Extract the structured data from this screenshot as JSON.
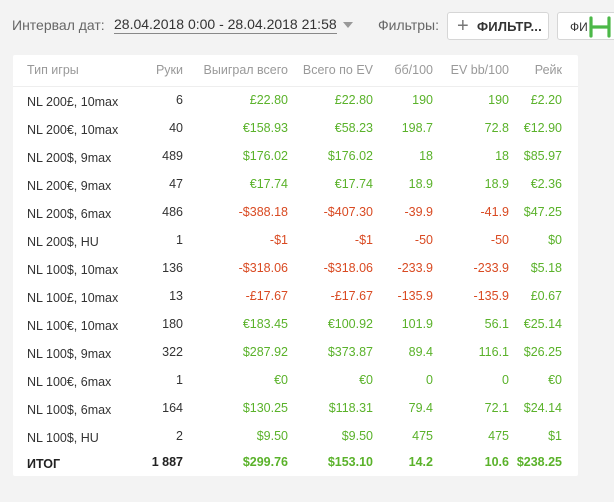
{
  "toolbar": {
    "date_label": "Интервал дат:",
    "date_range": "28.04.2018 0:00 - 28.04.2018 21:58",
    "filters_label": "Фильтры:",
    "filter_button": "ФИЛЬТР...",
    "second_button": "ФИ"
  },
  "table": {
    "headers": [
      "Тип игры",
      "Руки",
      "Выиграл всего",
      "Всего по EV",
      "бб/100",
      "EV bb/100",
      "Рейк"
    ],
    "rows": [
      {
        "game": "NL 200£, 10max",
        "hands": "6",
        "won": "£22.80",
        "ev": "£22.80",
        "bb100": "190",
        "evbb100": "190",
        "rake": "£2.20",
        "won_sign": "pos",
        "ev_sign": "pos",
        "bb_sign": "pos",
        "evbb_sign": "pos"
      },
      {
        "game": "NL 200€, 10max",
        "hands": "40",
        "won": "€158.93",
        "ev": "€58.23",
        "bb100": "198.7",
        "evbb100": "72.8",
        "rake": "€12.90",
        "won_sign": "pos",
        "ev_sign": "pos",
        "bb_sign": "pos",
        "evbb_sign": "pos"
      },
      {
        "game": "NL 200$, 9max",
        "hands": "489",
        "won": "$176.02",
        "ev": "$176.02",
        "bb100": "18",
        "evbb100": "18",
        "rake": "$85.97",
        "won_sign": "pos",
        "ev_sign": "pos",
        "bb_sign": "pos",
        "evbb_sign": "pos"
      },
      {
        "game": "NL 200€, 9max",
        "hands": "47",
        "won": "€17.74",
        "ev": "€17.74",
        "bb100": "18.9",
        "evbb100": "18.9",
        "rake": "€2.36",
        "won_sign": "pos",
        "ev_sign": "pos",
        "bb_sign": "pos",
        "evbb_sign": "pos"
      },
      {
        "game": "NL 200$, 6max",
        "hands": "486",
        "won": "-$388.18",
        "ev": "-$407.30",
        "bb100": "-39.9",
        "evbb100": "-41.9",
        "rake": "$47.25",
        "won_sign": "neg",
        "ev_sign": "neg",
        "bb_sign": "neg",
        "evbb_sign": "neg"
      },
      {
        "game": "NL 200$, HU",
        "hands": "1",
        "won": "-$1",
        "ev": "-$1",
        "bb100": "-50",
        "evbb100": "-50",
        "rake": "$0",
        "won_sign": "neg",
        "ev_sign": "neg",
        "bb_sign": "neg",
        "evbb_sign": "neg"
      },
      {
        "game": "NL 100$, 10max",
        "hands": "136",
        "won": "-$318.06",
        "ev": "-$318.06",
        "bb100": "-233.9",
        "evbb100": "-233.9",
        "rake": "$5.18",
        "won_sign": "neg",
        "ev_sign": "neg",
        "bb_sign": "neg",
        "evbb_sign": "neg"
      },
      {
        "game": "NL 100£, 10max",
        "hands": "13",
        "won": "-£17.67",
        "ev": "-£17.67",
        "bb100": "-135.9",
        "evbb100": "-135.9",
        "rake": "£0.67",
        "won_sign": "neg",
        "ev_sign": "neg",
        "bb_sign": "neg",
        "evbb_sign": "neg"
      },
      {
        "game": "NL 100€, 10max",
        "hands": "180",
        "won": "€183.45",
        "ev": "€100.92",
        "bb100": "101.9",
        "evbb100": "56.1",
        "rake": "€25.14",
        "won_sign": "pos",
        "ev_sign": "pos",
        "bb_sign": "pos",
        "evbb_sign": "pos"
      },
      {
        "game": "NL 100$, 9max",
        "hands": "322",
        "won": "$287.92",
        "ev": "$373.87",
        "bb100": "89.4",
        "evbb100": "116.1",
        "rake": "$26.25",
        "won_sign": "pos",
        "ev_sign": "pos",
        "bb_sign": "pos",
        "evbb_sign": "pos"
      },
      {
        "game": "NL 100€, 6max",
        "hands": "1",
        "won": "€0",
        "ev": "€0",
        "bb100": "0",
        "evbb100": "0",
        "rake": "€0",
        "won_sign": "pos",
        "ev_sign": "pos",
        "bb_sign": "pos",
        "evbb_sign": "pos"
      },
      {
        "game": "NL 100$, 6max",
        "hands": "164",
        "won": "$130.25",
        "ev": "$118.31",
        "bb100": "79.4",
        "evbb100": "72.1",
        "rake": "$24.14",
        "won_sign": "pos",
        "ev_sign": "pos",
        "bb_sign": "pos",
        "evbb_sign": "pos"
      },
      {
        "game": "NL 100$, HU",
        "hands": "2",
        "won": "$9.50",
        "ev": "$9.50",
        "bb100": "475",
        "evbb100": "475",
        "rake": "$1",
        "won_sign": "pos",
        "ev_sign": "pos",
        "bb_sign": "pos",
        "evbb_sign": "pos"
      }
    ],
    "total": {
      "game": "ИТОГ",
      "hands": "1 887",
      "won": "$299.76",
      "ev": "$153.10",
      "bb100": "14.2",
      "evbb100": "10.6",
      "rake": "$238.25"
    }
  },
  "colors": {
    "positive": "#5ab22a",
    "negative": "#d94a22",
    "logo": "#4cb848"
  },
  "icons": {
    "caret": "chevron-down-icon",
    "plus": "plus-icon",
    "logo": "h-logo-icon"
  }
}
